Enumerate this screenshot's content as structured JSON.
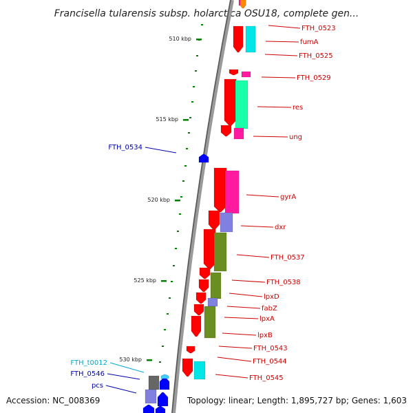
{
  "title": "Francisella tularensis subsp. holarctica OSU18, complete gen...",
  "footer": {
    "accession": "Accession: NC_008369",
    "topology": "Topology: linear; Length: 1,895,727 bp; Genes: 1,603"
  },
  "colors": {
    "red": "#ff0000",
    "magenta": "#ff1aa0",
    "cyan": "#00e5e5",
    "spring": "#1affaa",
    "slate": "#8080e0",
    "olive": "#6b8e23",
    "blue": "#0000ff",
    "gray": "#666666",
    "label_red": "#cc0000",
    "label_blue": "#0000aa",
    "label_cyan": "#00aacc",
    "tick_green": "#008000"
  },
  "ticks": [
    {
      "label": "510 kbp"
    },
    {
      "label": "515 kbp"
    },
    {
      "label": "520 kbp"
    },
    {
      "label": "525 kbp"
    },
    {
      "label": "530 kbp"
    }
  ],
  "right_labels": [
    "FTH_0523",
    "fumA",
    "FTH_0525",
    "FTH_0529",
    "res",
    "ung",
    "gyrA",
    "dxr",
    "FTH_0537",
    "FTH_0538",
    "lpxD",
    "fabZ",
    "lpxA",
    "lpxB",
    "FTH_0543",
    "FTH_0544",
    "FTH_0545"
  ],
  "left_labels": [
    {
      "text": "FTH_0534",
      "color": "blue"
    },
    {
      "text": "FTH_t0012",
      "color": "cyan"
    },
    {
      "text": "FTH_0546",
      "color": "blue"
    },
    {
      "text": "pcs",
      "color": "blue"
    }
  ]
}
